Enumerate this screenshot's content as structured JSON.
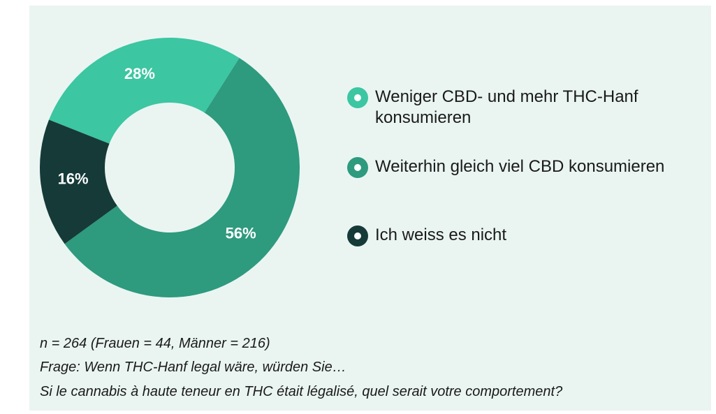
{
  "chart_data": {
    "type": "donut",
    "categories": [
      "Weniger CBD- und mehr THC-Hanf konsumieren",
      "Weiterhin gleich viel CBD konsumieren",
      "Ich weiss es nicht"
    ],
    "values": [
      28,
      56,
      16
    ],
    "value_labels": [
      "28%",
      "56%",
      "16%"
    ],
    "colors": [
      "#3cc6a2",
      "#2e9a7e",
      "#163a38"
    ],
    "legend": "right",
    "notes": [
      "n = 264 (Frauen = 44, Männer = 216)",
      "Frage: Wenn THC-Hanf legal wäre, würden Sie…",
      "Si le cannabis à haute teneur en THC était légalisé, quel serait votre comportement?"
    ]
  }
}
